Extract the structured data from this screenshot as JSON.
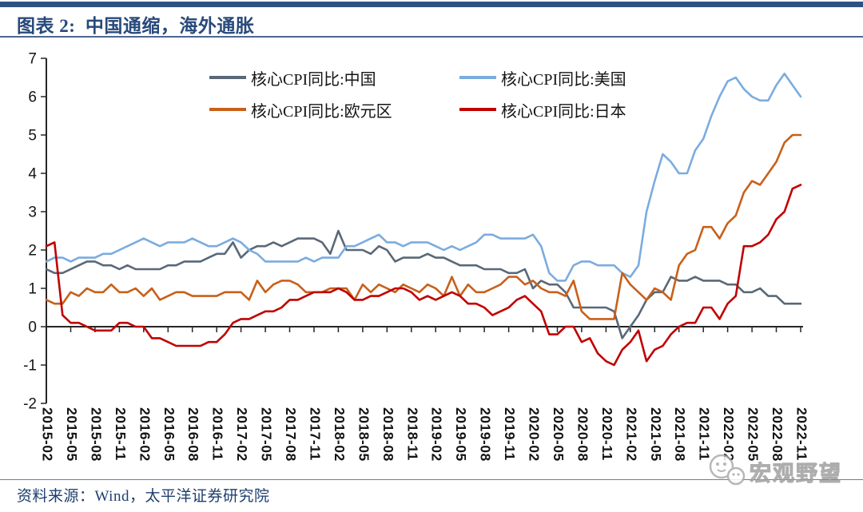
{
  "header": {
    "title": "图表 2:  中国通缩，海外通胀"
  },
  "footer": {
    "source": "资料来源：Wind，太平洋证券研究院"
  },
  "watermark": {
    "text": "宏观野望",
    "icon": "wechat-logo-icon"
  },
  "colors": {
    "accent_navy": "#2f5181",
    "divider": "#4e6691",
    "axis": "#262626",
    "china": "#5a6878",
    "us": "#7bacdf",
    "eurozone": "#c8601a",
    "japan": "#c00000",
    "watermark_gray": "#9f9f9f"
  },
  "chart_data": {
    "type": "line",
    "title": "中国通缩，海外通胀",
    "xlabel": "",
    "ylabel": "",
    "ylim": [
      -2,
      7
    ],
    "y_ticks": [
      -2,
      -1,
      0,
      1,
      2,
      3,
      4,
      5,
      6,
      7
    ],
    "grid": false,
    "legend_position": "top-center",
    "x_tick_step": 3,
    "x": [
      "2015-02",
      "2015-03",
      "2015-04",
      "2015-05",
      "2015-06",
      "2015-07",
      "2015-08",
      "2015-09",
      "2015-10",
      "2015-11",
      "2015-12",
      "2016-01",
      "2016-02",
      "2016-03",
      "2016-04",
      "2016-05",
      "2016-06",
      "2016-07",
      "2016-08",
      "2016-09",
      "2016-10",
      "2016-11",
      "2016-12",
      "2017-01",
      "2017-02",
      "2017-03",
      "2017-04",
      "2017-05",
      "2017-06",
      "2017-07",
      "2017-08",
      "2017-09",
      "2017-10",
      "2017-11",
      "2017-12",
      "2018-01",
      "2018-02",
      "2018-03",
      "2018-04",
      "2018-05",
      "2018-06",
      "2018-07",
      "2018-08",
      "2018-09",
      "2018-10",
      "2018-11",
      "2018-12",
      "2019-01",
      "2019-02",
      "2019-03",
      "2019-04",
      "2019-05",
      "2019-06",
      "2019-07",
      "2019-08",
      "2019-09",
      "2019-10",
      "2019-11",
      "2019-12",
      "2020-01",
      "2020-02",
      "2020-03",
      "2020-04",
      "2020-05",
      "2020-06",
      "2020-07",
      "2020-08",
      "2020-09",
      "2020-10",
      "2020-11",
      "2020-12",
      "2021-01",
      "2021-02",
      "2021-03",
      "2021-04",
      "2021-05",
      "2021-06",
      "2021-07",
      "2021-08",
      "2021-09",
      "2021-10",
      "2021-11",
      "2021-12",
      "2022-01",
      "2022-02",
      "2022-03",
      "2022-04",
      "2022-05",
      "2022-06",
      "2022-07",
      "2022-08",
      "2022-09",
      "2022-10",
      "2022-11"
    ],
    "series": [
      {
        "name": "核心CPI同比:中国",
        "color": "#5a6878",
        "values": [
          1.5,
          1.4,
          1.4,
          1.5,
          1.6,
          1.7,
          1.7,
          1.6,
          1.6,
          1.5,
          1.6,
          1.5,
          1.5,
          1.5,
          1.5,
          1.6,
          1.6,
          1.7,
          1.7,
          1.7,
          1.8,
          1.9,
          1.9,
          2.2,
          1.8,
          2.0,
          2.1,
          2.1,
          2.2,
          2.1,
          2.2,
          2.3,
          2.3,
          2.3,
          2.2,
          1.9,
          2.5,
          2.0,
          2.0,
          2.0,
          1.9,
          2.1,
          2.0,
          1.7,
          1.8,
          1.8,
          1.8,
          1.9,
          1.8,
          1.8,
          1.7,
          1.6,
          1.6,
          1.6,
          1.5,
          1.5,
          1.5,
          1.4,
          1.4,
          1.5,
          1.0,
          1.2,
          1.1,
          1.1,
          0.9,
          0.5,
          0.5,
          0.5,
          0.5,
          0.5,
          0.4,
          -0.3,
          0.0,
          0.3,
          0.7,
          0.9,
          0.9,
          1.3,
          1.2,
          1.2,
          1.3,
          1.2,
          1.2,
          1.2,
          1.1,
          1.1,
          0.9,
          0.9,
          1.0,
          0.8,
          0.8,
          0.6,
          0.6,
          0.6
        ]
      },
      {
        "name": "核心CPI同比:美国",
        "color": "#7bacdf",
        "values": [
          1.7,
          1.8,
          1.8,
          1.7,
          1.8,
          1.8,
          1.8,
          1.9,
          1.9,
          2.0,
          2.1,
          2.2,
          2.3,
          2.2,
          2.1,
          2.2,
          2.2,
          2.2,
          2.3,
          2.2,
          2.1,
          2.1,
          2.2,
          2.3,
          2.2,
          2.0,
          1.9,
          1.7,
          1.7,
          1.7,
          1.7,
          1.7,
          1.8,
          1.7,
          1.8,
          1.8,
          1.8,
          2.1,
          2.1,
          2.2,
          2.3,
          2.4,
          2.2,
          2.2,
          2.1,
          2.2,
          2.2,
          2.2,
          2.1,
          2.0,
          2.1,
          2.0,
          2.1,
          2.2,
          2.4,
          2.4,
          2.3,
          2.3,
          2.3,
          2.3,
          2.4,
          2.1,
          1.4,
          1.2,
          1.2,
          1.6,
          1.7,
          1.7,
          1.6,
          1.6,
          1.6,
          1.4,
          1.3,
          1.6,
          3.0,
          3.8,
          4.5,
          4.3,
          4.0,
          4.0,
          4.6,
          4.9,
          5.5,
          6.0,
          6.4,
          6.5,
          6.2,
          6.0,
          5.9,
          5.9,
          6.3,
          6.6,
          6.3,
          6.0
        ]
      },
      {
        "name": "核心CPI同比:欧元区",
        "color": "#c8601a",
        "values": [
          0.7,
          0.6,
          0.6,
          0.9,
          0.8,
          1.0,
          0.9,
          0.9,
          1.1,
          0.9,
          0.9,
          1.0,
          0.8,
          1.0,
          0.7,
          0.8,
          0.9,
          0.9,
          0.8,
          0.8,
          0.8,
          0.8,
          0.9,
          0.9,
          0.9,
          0.7,
          1.2,
          0.9,
          1.1,
          1.2,
          1.2,
          1.1,
          0.9,
          0.9,
          0.9,
          1.0,
          1.0,
          1.0,
          0.7,
          1.1,
          0.9,
          1.1,
          1.0,
          0.9,
          1.1,
          1.0,
          0.9,
          1.1,
          1.0,
          0.8,
          1.3,
          0.8,
          1.1,
          0.9,
          0.9,
          1.0,
          1.1,
          1.3,
          1.3,
          1.1,
          1.2,
          1.0,
          0.9,
          0.9,
          0.8,
          1.2,
          0.4,
          0.2,
          0.2,
          0.2,
          0.2,
          1.4,
          1.1,
          0.9,
          0.7,
          1.0,
          0.9,
          0.7,
          1.6,
          1.9,
          2.0,
          2.6,
          2.6,
          2.3,
          2.7,
          2.9,
          3.5,
          3.8,
          3.7,
          4.0,
          4.3,
          4.8,
          5.0,
          5.0
        ]
      },
      {
        "name": "核心CPI同比:日本",
        "color": "#c00000",
        "values": [
          2.1,
          2.2,
          0.3,
          0.1,
          0.1,
          0.0,
          -0.1,
          -0.1,
          -0.1,
          0.1,
          0.1,
          0.0,
          0.0,
          -0.3,
          -0.3,
          -0.4,
          -0.5,
          -0.5,
          -0.5,
          -0.5,
          -0.4,
          -0.4,
          -0.2,
          0.1,
          0.2,
          0.2,
          0.3,
          0.4,
          0.4,
          0.5,
          0.7,
          0.7,
          0.8,
          0.9,
          0.9,
          0.9,
          1.0,
          0.9,
          0.7,
          0.7,
          0.8,
          0.8,
          0.9,
          1.0,
          1.0,
          0.9,
          0.7,
          0.8,
          0.7,
          0.8,
          0.9,
          0.8,
          0.6,
          0.6,
          0.5,
          0.3,
          0.4,
          0.5,
          0.7,
          0.8,
          0.6,
          0.4,
          -0.2,
          -0.2,
          0.0,
          0.0,
          -0.4,
          -0.3,
          -0.7,
          -0.9,
          -1.0,
          -0.6,
          -0.4,
          -0.1,
          -0.9,
          -0.6,
          -0.5,
          -0.2,
          0.0,
          0.1,
          0.1,
          0.5,
          0.5,
          0.2,
          0.6,
          0.8,
          2.1,
          2.1,
          2.2,
          2.4,
          2.8,
          3.0,
          3.6,
          3.7
        ]
      }
    ]
  }
}
